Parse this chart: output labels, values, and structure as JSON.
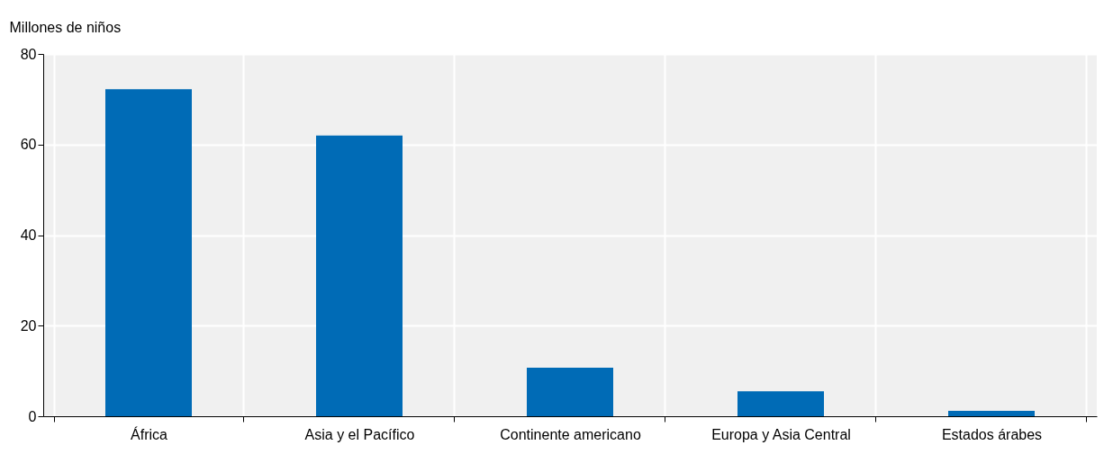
{
  "chart_data": {
    "type": "bar",
    "ylabel": "Millones de niños",
    "categories": [
      "África",
      "Asia y el Pacífico",
      "Continente americano",
      "Europa y Asia Central",
      "Estados árabes"
    ],
    "values": [
      72.2,
      62.0,
      10.7,
      5.5,
      1.2
    ],
    "color": "#006bb6",
    "ylim": [
      0,
      80
    ],
    "yticks": [
      0,
      20,
      40,
      60,
      80
    ],
    "grid": true
  }
}
